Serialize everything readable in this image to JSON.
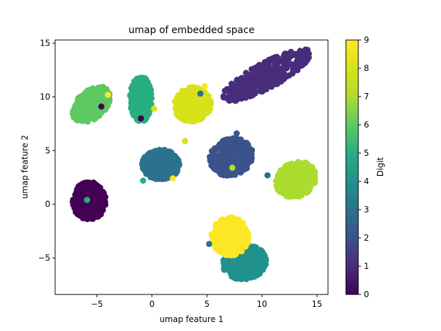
{
  "chart_data": {
    "type": "scatter",
    "title": "umap of embedded space",
    "xlabel": "umap feature 1",
    "ylabel": "umap feature 2",
    "xlim": [
      -8.8,
      16.0
    ],
    "ylim": [
      -8.4,
      15.3
    ],
    "xticks": [
      -5,
      0,
      5,
      10,
      15
    ],
    "yticks": [
      -5,
      0,
      5,
      10,
      15
    ],
    "colorbar": {
      "label": "Digit",
      "range": [
        0,
        9
      ],
      "ticks": [
        0,
        1,
        2,
        3,
        4,
        5,
        6,
        7,
        8,
        9
      ],
      "colormap": "viridis"
    },
    "clusters": [
      {
        "digit": 0,
        "center": [
          -5.7,
          0.3
        ],
        "rx": 1.5,
        "ry": 1.8,
        "rotation": 0
      },
      {
        "digit": 1,
        "center": [
          10.4,
          12.0
        ],
        "rx": 4.6,
        "ry": 1.2,
        "rotation": -28
      },
      {
        "digit": 2,
        "center": [
          7.2,
          4.4
        ],
        "rx": 2.0,
        "ry": 1.7,
        "rotation": -20
      },
      {
        "digit": 3,
        "center": [
          0.8,
          3.7
        ],
        "rx": 1.7,
        "ry": 1.4,
        "rotation": 0
      },
      {
        "digit": 4,
        "center": [
          8.4,
          -5.4
        ],
        "rx": 2.0,
        "ry": 1.6,
        "rotation": -10
      },
      {
        "digit": 5,
        "center": [
          -1.0,
          9.8
        ],
        "rx": 1.0,
        "ry": 2.1,
        "rotation": 0
      },
      {
        "digit": 6,
        "center": [
          -5.5,
          9.3
        ],
        "rx": 2.0,
        "ry": 1.3,
        "rotation": -42
      },
      {
        "digit": 7,
        "center": [
          13.1,
          2.3
        ],
        "rx": 1.9,
        "ry": 1.6,
        "rotation": -25
      },
      {
        "digit": 8,
        "center": [
          3.7,
          9.3
        ],
        "rx": 1.7,
        "ry": 1.6,
        "rotation": -25
      },
      {
        "digit": 9,
        "center": [
          7.1,
          -3.0
        ],
        "rx": 1.7,
        "ry": 1.8,
        "rotation": 0
      }
    ],
    "outliers": [
      {
        "digit": 5,
        "x": -5.9,
        "y": 0.4
      },
      {
        "digit": 9,
        "x": -4.0,
        "y": 10.2
      },
      {
        "digit": 0,
        "x": -4.6,
        "y": 9.1
      },
      {
        "digit": 8,
        "x": 3.0,
        "y": 5.9
      },
      {
        "digit": 9,
        "x": 1.9,
        "y": 2.4
      },
      {
        "digit": 3,
        "x": 4.4,
        "y": 10.3
      },
      {
        "digit": 9,
        "x": 4.8,
        "y": 11.0
      },
      {
        "digit": 7,
        "x": 7.3,
        "y": 3.4
      },
      {
        "digit": 8,
        "x": 0.2,
        "y": 8.9
      },
      {
        "digit": 2,
        "x": 7.7,
        "y": 6.6
      },
      {
        "digit": 3,
        "x": 10.5,
        "y": 2.7
      },
      {
        "digit": 5,
        "x": -0.8,
        "y": 2.2
      },
      {
        "digit": 3,
        "x": 5.2,
        "y": -3.7
      },
      {
        "digit": 0,
        "x": -1.0,
        "y": 8.0
      }
    ]
  }
}
